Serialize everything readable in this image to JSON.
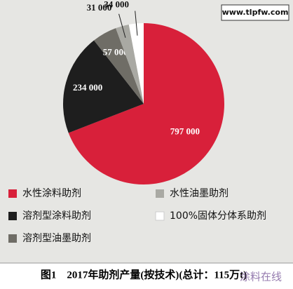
{
  "chart_data": {
    "type": "pie",
    "title": "图1　2017年助剂产量(按技术)(总计：115万t)",
    "categories": [
      "水性涂料助剂",
      "溶剂型涂料助剂",
      "溶剂型油墨助剂",
      "水性油墨助剂",
      "100%固体分体系助剂"
    ],
    "values": [
      797000,
      234000,
      57000,
      31000,
      34000
    ],
    "value_labels": [
      "797 000",
      "234 000",
      "57 000",
      "31 000",
      "34 000"
    ],
    "colors": [
      "#d8203a",
      "#1e1e1e",
      "#6f6d66",
      "#a9a9a3",
      "#ffffff"
    ],
    "legend": "bottom"
  },
  "watermarks": [
    "www.tlpfw.com",
    "涂料在线"
  ]
}
